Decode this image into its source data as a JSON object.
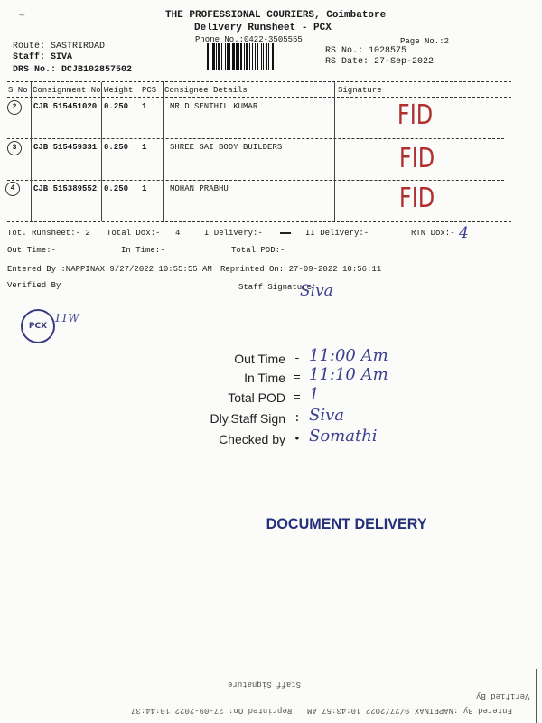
{
  "header": {
    "company": "THE PROFESSIONAL COURIERS, Coimbatore",
    "title": "Delivery Runsheet - PCX",
    "phone": "Phone No.:0422-3505555",
    "page_no": "Page No.:2",
    "route": "Route: SASTRIROAD",
    "staff": "Staff: SIVA",
    "drs_no": "DRS No.: DCJB102857502",
    "rs_no": "RS No.: 1028575",
    "rs_date": "RS Date: 27-Sep-2022"
  },
  "table": {
    "columns": [
      "S No",
      "Consignment No",
      "Weight",
      "PCS",
      "Consignee Details",
      "Signature"
    ],
    "rows": [
      {
        "sno": "2",
        "consignment": "CJB 515451020",
        "weight": "0.250",
        "pcs": "1",
        "consignee": "MR D.SENTHIL KUMAR",
        "signature": "FID"
      },
      {
        "sno": "3",
        "consignment": "CJB 515459331",
        "weight": "0.250",
        "pcs": "1",
        "consignee": "SHREE SAI BODY BUILDERS",
        "signature": "FID"
      },
      {
        "sno": "4",
        "consignment": "CJB 515389552",
        "weight": "0.250",
        "pcs": "1",
        "consignee": "MOHAN PRABHU",
        "signature": "FID"
      }
    ]
  },
  "summary": {
    "tot_runsheet": "Tot. Runsheet:- 2",
    "total_dox": "Total Dox:-",
    "total_dox_value": "4",
    "i_delivery": "I Delivery:-",
    "ii_delivery": "II Delivery:-",
    "rtn_dox": "RTN Dox:-",
    "rtn_dox_hand": "4",
    "out_time": "Out Time:-",
    "in_time": "In Time:-",
    "total_pod": "Total POD:-",
    "entered_by": "Entered By :NAPPINAX 9/27/2022 10:55:55 AM",
    "reprinted_on": "Reprinted On: 27-09-2022 10:56:11",
    "verified_by": "Verified By",
    "staff_signature": "Staff Signature",
    "staff_signature_hand": "Siva"
  },
  "stamp": {
    "text": "PCX",
    "hand": "11W"
  },
  "handwritten_block": [
    {
      "label": "Out Time",
      "sep": "-",
      "value": "11:00 Am"
    },
    {
      "label": "In Time",
      "sep": "=",
      "value": "11:10 Am"
    },
    {
      "label": "Total POD",
      "sep": "=",
      "value": "1"
    },
    {
      "label": "Dly.Staff Sign",
      "sep": ":",
      "value": "Siva"
    },
    {
      "label": "Checked by",
      "sep": "•",
      "value": "Somathi"
    }
  ],
  "stamp_text": "DOCUMENT DELIVERY",
  "bleed_through": {
    "staff_signature": "Staff Signature",
    "verified_by": "Verified By",
    "entered_by": "Entered By :NAPPINAX 9/27/2022 10:43:57 AM",
    "reprinted_on": "Reprinted On: 27-09-2022 10:44:37"
  },
  "colors": {
    "ink_blue": "#3b3f8f",
    "ink_red": "#b03030",
    "stamp_blue": "#23307a"
  }
}
